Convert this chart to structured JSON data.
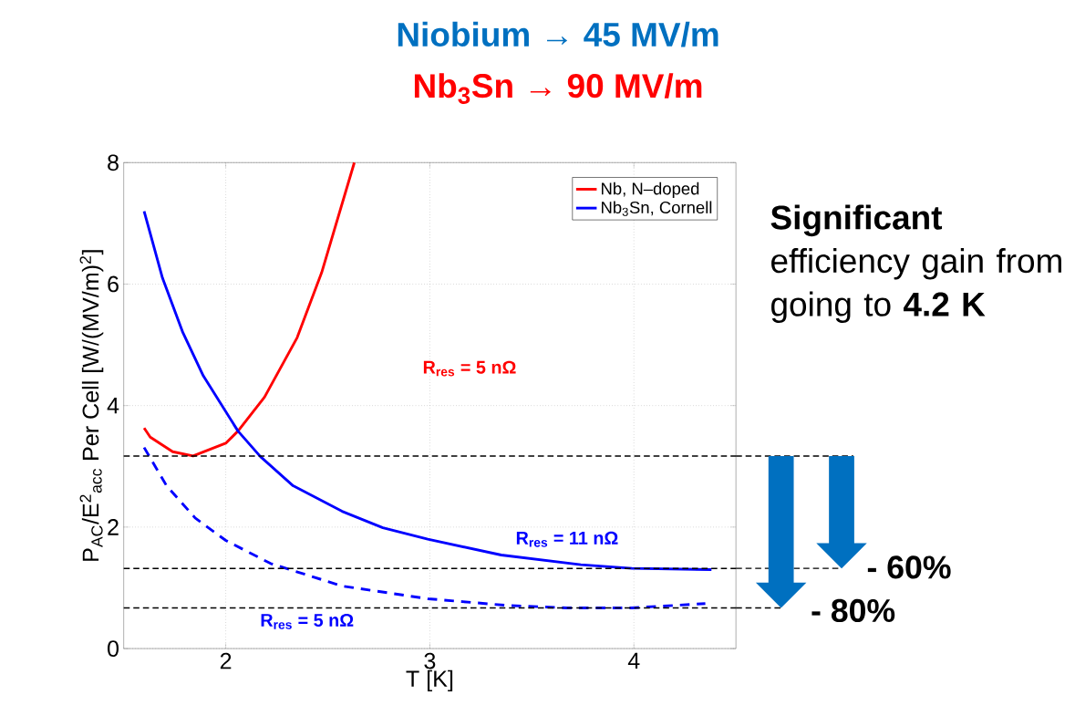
{
  "chart_data": {
    "type": "line",
    "title": "Niobium → 45 MV/m",
    "subtitle": "Nb$_{3}$Sn → 90 MV/m",
    "xlabel": "T [K]",
    "ylabel": "P$_{AC}$/E$^{2}$$_{acc}$ Per Cell [W/(MV/m)$^{2}$]",
    "xlim": [
      1.5,
      4.5
    ],
    "ylim": [
      0,
      8
    ],
    "xticks": [
      2,
      3,
      4
    ],
    "yticks": [
      0,
      2,
      4,
      6,
      8
    ],
    "grid": true,
    "legend": "top right",
    "marker": "none",
    "series": [
      {
        "name": "Nb, N–doped",
        "color": "#ff0000",
        "line_style": "solid",
        "x": [
          1.6,
          1.63,
          1.74,
          1.84,
          2.0,
          2.06,
          2.19,
          2.35,
          2.47,
          2.63
        ],
        "values": [
          3.63,
          3.48,
          3.24,
          3.17,
          3.38,
          3.58,
          4.14,
          5.12,
          6.19,
          8.0
        ]
      },
      {
        "name": "Nb$_{3}$Sn, Cornell",
        "color": "#0000ff",
        "line_style": "solid",
        "x": [
          1.6,
          1.69,
          1.79,
          1.89,
          2.06,
          2.17,
          2.33,
          2.57,
          2.77,
          2.99,
          3.35,
          3.74,
          3.99,
          4.38
        ],
        "values": [
          7.2,
          6.1,
          5.2,
          4.49,
          3.58,
          3.16,
          2.68,
          2.26,
          1.99,
          1.8,
          1.54,
          1.38,
          1.32,
          1.3
        ]
      },
      {
        "color": "#0000ff",
        "line_style": "dashed",
        "x": [
          1.6,
          1.71,
          1.85,
          2.0,
          2.22,
          2.57,
          2.99,
          3.38,
          3.67,
          3.99,
          4.35
        ],
        "values": [
          3.31,
          2.68,
          2.15,
          1.78,
          1.4,
          1.03,
          0.82,
          0.71,
          0.67,
          0.67,
          0.74
        ]
      }
    ],
    "ref_lines": [
      {
        "axis": "y",
        "value": 3.17,
        "line_style": "dashed",
        "color": "#000000"
      },
      {
        "axis": "y",
        "value": 1.32,
        "line_style": "dashed",
        "color": "#000000"
      },
      {
        "axis": "y",
        "value": 0.67,
        "line_style": "dashed",
        "color": "#000000"
      }
    ],
    "annotations": [
      "R$_{res}$ = 5 nΩ",
      "R$_{res}$ = 11 nΩ",
      "R$_{res}$ = 5 nΩ",
      "**Significant** efficiency gain from going to **4.2 K**",
      "- 60%",
      "- 80%"
    ]
  }
}
